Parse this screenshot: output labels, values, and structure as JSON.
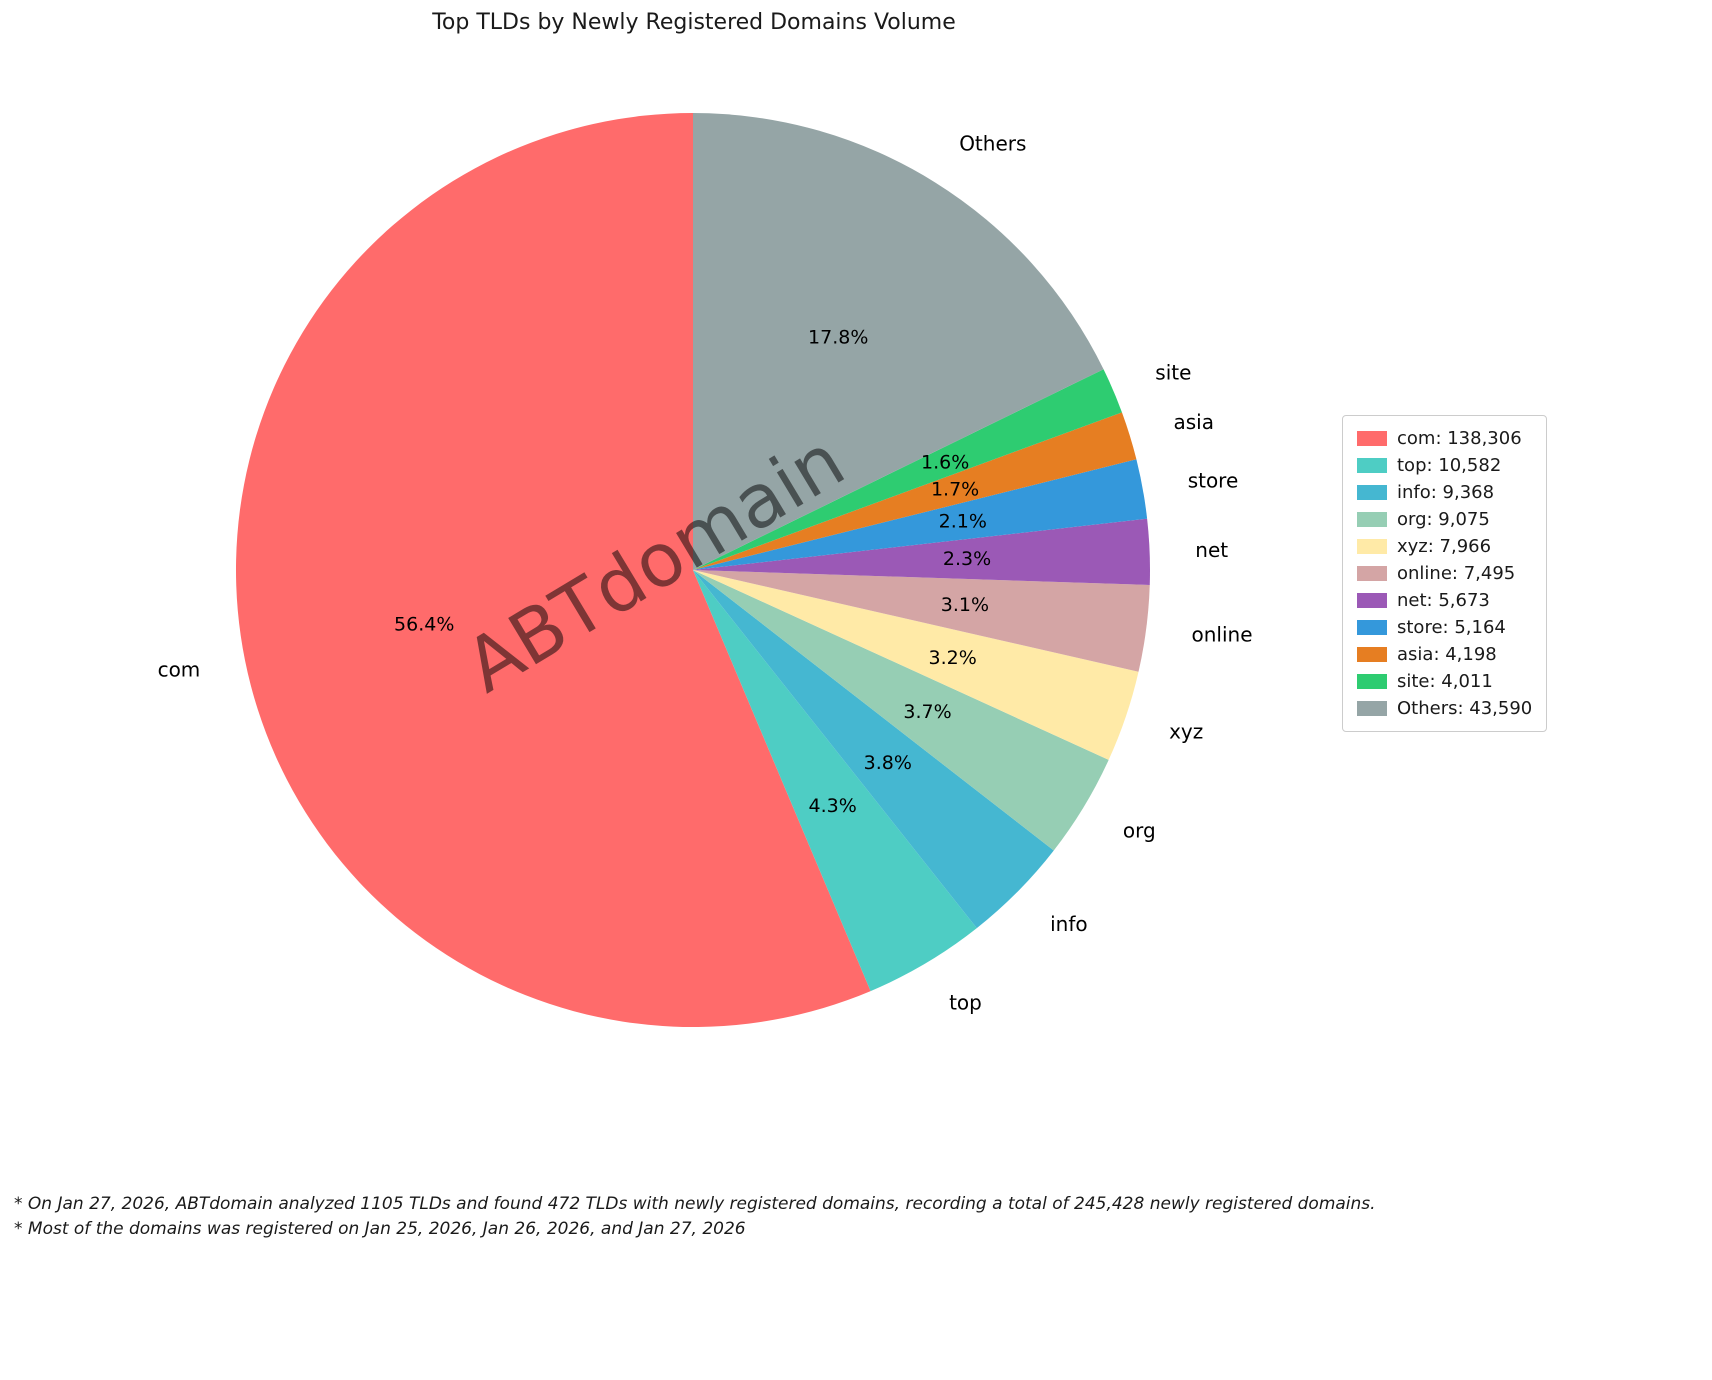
{
  "title": "Top TLDs by Newly Registered Domains Volume",
  "watermark": "ABTdomain",
  "footnotes": {
    "line1": "* On Jan 27, 2026, ABTdomain analyzed 1105 TLDs and found 472 TLDs with newly registered domains, recording a total of 245,428 newly registered domains.",
    "line2": "* Most of the domains was registered on Jan 25, 2026, Jan 26, 2026, and Jan 27, 2026"
  },
  "chart_data": {
    "type": "pie",
    "title": "Top TLDs by Newly Registered Domains Volume",
    "labels": [
      "com",
      "top",
      "info",
      "org",
      "xyz",
      "online",
      "net",
      "store",
      "asia",
      "site",
      "Others"
    ],
    "values": [
      138306,
      10582,
      9368,
      9075,
      7966,
      7495,
      5673,
      5164,
      4198,
      4011,
      43590
    ],
    "value_labels": [
      "138,306",
      "10,582",
      "9,368",
      "9,075",
      "7,966",
      "7,495",
      "5,673",
      "5,164",
      "4,198",
      "4,011",
      "43,590"
    ],
    "percent_labels": [
      "56.4%",
      "4.3%",
      "3.8%",
      "3.7%",
      "3.2%",
      "3.1%",
      "2.3%",
      "2.1%",
      "1.7%",
      "1.6%",
      "17.8%"
    ],
    "colors": [
      "#ff6b6b",
      "#4ecdc4",
      "#45b7d1",
      "#96ceb4",
      "#ffeaa7",
      "#d4a5a5",
      "#9b59b6",
      "#3498db",
      "#e67e22",
      "#2ecc71",
      "#95a5a6"
    ],
    "total": 245428,
    "start_angle": 90,
    "direction": "counterclockwise",
    "legend_position": "right"
  }
}
